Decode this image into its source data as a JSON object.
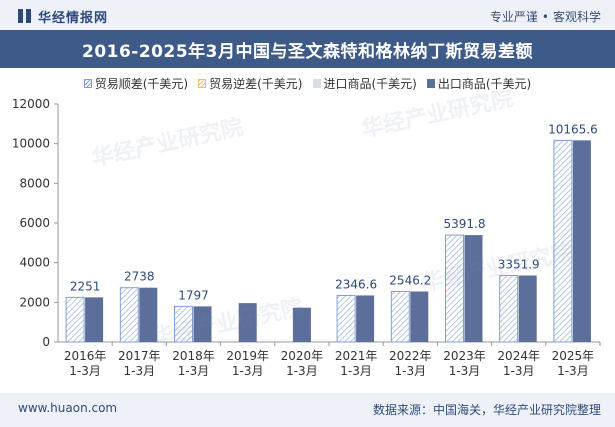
{
  "header": {
    "brand": "华经情报网",
    "slogan_left": "专业严谨",
    "slogan_dot": "•",
    "slogan_right": "客观科学"
  },
  "footer": {
    "website": "www.huaon.com",
    "source": "数据来源：中国海关，华经产业研究院整理"
  },
  "watermark": "华经产业研究院",
  "colors": {
    "surplus": "#7ea0d4",
    "deficit": "#e3c46a",
    "import": "#d9dde4",
    "export": "#5b6f9a",
    "title_bg": "#3d5a89"
  },
  "chart_data": {
    "type": "bar",
    "title": "2016-2025年3月中国与圣文森特和格林纳丁斯贸易差额",
    "categories": [
      [
        "2016年",
        "1-3月"
      ],
      [
        "2017年",
        "1-3月"
      ],
      [
        "2018年",
        "1-3月"
      ],
      [
        "2019年",
        "1-3月"
      ],
      [
        "2020年",
        "1-3月"
      ],
      [
        "2021年",
        "1-3月"
      ],
      [
        "2022年",
        "1-3月"
      ],
      [
        "2023年",
        "1-3月"
      ],
      [
        "2024年",
        "1-3月"
      ],
      [
        "2025年",
        "1-3月"
      ]
    ],
    "series": [
      {
        "name": "贸易顺差(千美元)",
        "values": [
          2251,
          2738,
          1797,
          null,
          null,
          2346.6,
          2546.2,
          5391.8,
          3351.9,
          10165.6
        ]
      },
      {
        "name": "贸易逆差(千美元)",
        "values": [
          null,
          null,
          null,
          null,
          null,
          null,
          null,
          null,
          null,
          null
        ]
      },
      {
        "name": "进口商品(千美元)",
        "values": [
          null,
          null,
          null,
          null,
          null,
          null,
          null,
          null,
          null,
          null
        ]
      },
      {
        "name": "出口商品(千美元)",
        "values": [
          2251,
          2738,
          1797,
          1960,
          1730,
          2346.6,
          2546.2,
          5391.8,
          3351.9,
          10165.6
        ]
      }
    ],
    "data_labels": [
      "2251",
      "2738",
      "1797",
      "",
      "",
      "2346.6",
      "2546.2",
      "5391.8",
      "3351.9",
      "10165.6"
    ],
    "yticks": [
      "0",
      "2000",
      "4000",
      "6000",
      "8000",
      "10000",
      "12000"
    ],
    "ylim": [
      0,
      12000
    ],
    "grid": false,
    "legend": "top-center"
  }
}
